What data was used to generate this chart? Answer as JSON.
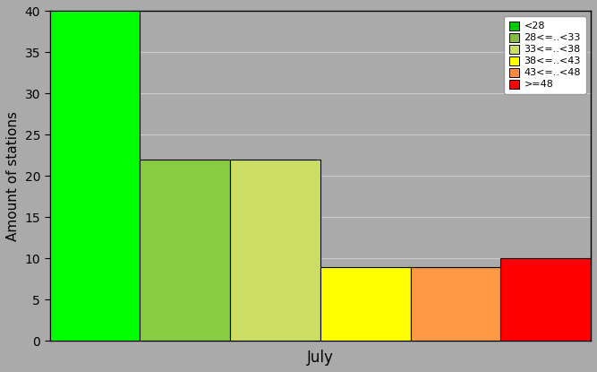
{
  "title": "",
  "xlabel": "July",
  "ylabel": "Amount of stations",
  "categories": [
    "<28",
    "28<=..<33",
    "33<=..<38",
    "38<=..<43",
    "43<=..<48",
    ">=48"
  ],
  "values": [
    40,
    22,
    22,
    9,
    9,
    10
  ],
  "bar_colors": [
    "#00ff00",
    "#88cc44",
    "#ccdd66",
    "#ffff00",
    "#ff9944",
    "#ff0000"
  ],
  "legend_colors": [
    "#00cc00",
    "#88bb44",
    "#ccdd66",
    "#ffff00",
    "#ff8844",
    "#ff0000"
  ],
  "ylim": [
    0,
    40
  ],
  "yticks": [
    0,
    5,
    10,
    15,
    20,
    25,
    30,
    35,
    40
  ],
  "background_color": "#aaaaaa",
  "figsize": [
    6.67,
    4.15
  ],
  "dpi": 100
}
